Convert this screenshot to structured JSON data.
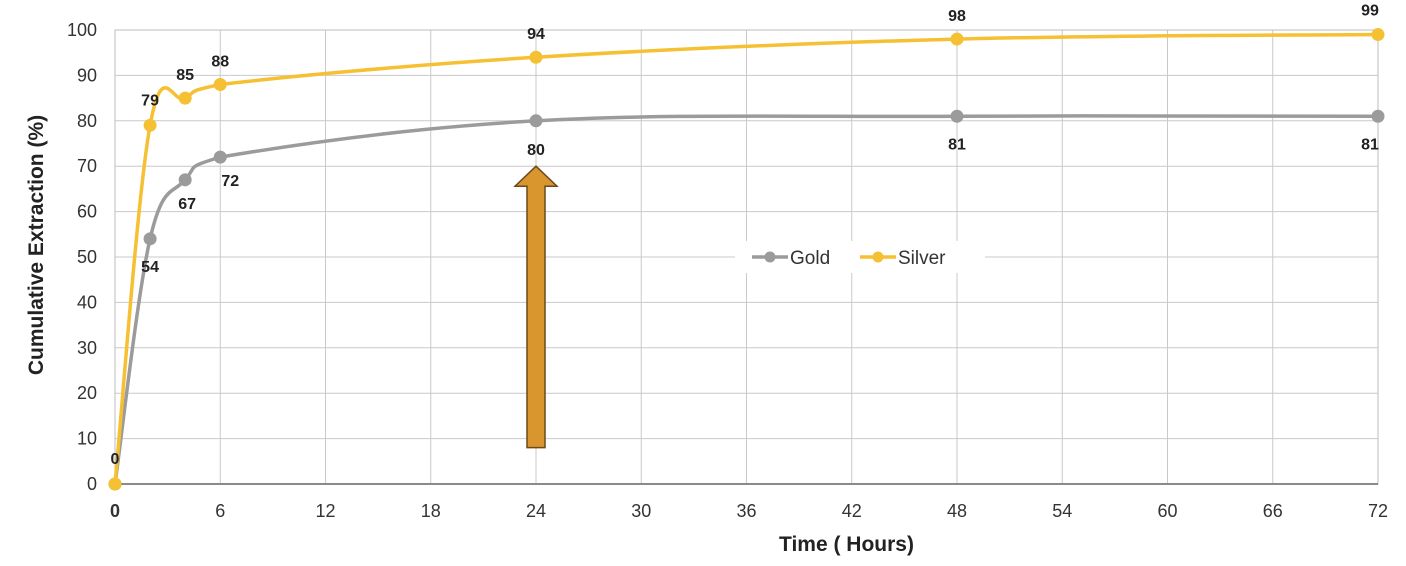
{
  "chart_data": {
    "type": "line",
    "xlabel": "Time ( Hours)",
    "ylabel": "Cumulative Extraction (%)",
    "xlim": [
      0,
      72
    ],
    "ylim": [
      0,
      100
    ],
    "xticks": [
      0,
      6,
      12,
      18,
      24,
      30,
      36,
      42,
      48,
      54,
      60,
      66,
      72
    ],
    "yticks": [
      0,
      10,
      20,
      30,
      40,
      50,
      60,
      70,
      80,
      90,
      100
    ],
    "grid": true,
    "legend_position": "center-right",
    "series": [
      {
        "name": "Gold",
        "color": "#9b9b9b",
        "x": [
          0,
          2,
          4,
          6,
          24,
          48,
          72
        ],
        "y": [
          0,
          54,
          67,
          72,
          80,
          81,
          81
        ],
        "labels": [
          "0",
          "54",
          "67",
          "72",
          "80",
          "81",
          "81"
        ],
        "label_x": [
          0,
          2,
          4,
          6,
          24,
          48,
          72
        ]
      },
      {
        "name": "Silver",
        "color": "#f5c032",
        "x": [
          0,
          2,
          4,
          6,
          24,
          48,
          72
        ],
        "y": [
          0,
          79,
          85,
          88,
          94,
          98,
          99
        ],
        "labels": [
          "79",
          "85",
          "88",
          "94",
          "98",
          "99"
        ],
        "label_x": [
          2,
          4,
          6,
          24,
          48,
          72
        ]
      }
    ],
    "annotation": {
      "type": "arrow-up",
      "x": 24,
      "y_from": 8,
      "y_to": 70,
      "color": "#d9962f"
    }
  }
}
